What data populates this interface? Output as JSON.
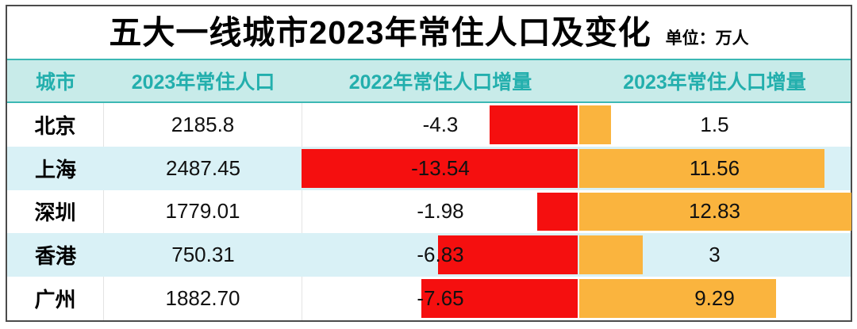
{
  "title": {
    "text": "五大一线城市2023年常住人口及变化",
    "unit_label": "单位：万人"
  },
  "colors": {
    "red": "#F50F0F",
    "orange": "#FAB43E",
    "headerBg": "#C8EBE9",
    "headerText": "#23AFAD",
    "tealBorder": "#3CB8B4",
    "altRow": "#D9F1F6",
    "frameBorder": "#4B4B4B"
  },
  "table": {
    "columns": [
      "城市",
      "2023年常住人口",
      "2022年常住人口增量",
      "2023年常住人口增量"
    ],
    "bar_scale": {
      "max_abs_2022": 13.54,
      "max_2023": 12.83
    },
    "rows": [
      {
        "city": "北京",
        "population": "2185.8",
        "delta2022": "-4.3",
        "delta2022_value": -4.3,
        "delta2023": "1.5",
        "delta2023_value": 1.5
      },
      {
        "city": "上海",
        "population": "2487.45",
        "delta2022": "-13.54",
        "delta2022_value": -13.54,
        "delta2023": "11.56",
        "delta2023_value": 11.56
      },
      {
        "city": "深圳",
        "population": "1779.01",
        "delta2022": "-1.98",
        "delta2022_value": -1.98,
        "delta2023": "12.83",
        "delta2023_value": 12.83
      },
      {
        "city": "香港",
        "population": "750.31",
        "delta2022": "-6.83",
        "delta2022_value": -6.83,
        "delta2023": "3",
        "delta2023_value": 3
      },
      {
        "city": "广州",
        "population": "1882.70",
        "delta2022": "-7.65",
        "delta2022_value": -7.65,
        "delta2023": "9.29",
        "delta2023_value": 9.29
      }
    ]
  },
  "chart_data": {
    "type": "table",
    "title": "五大一线城市2023年常住人口及变化",
    "unit": "万人",
    "categories": [
      "北京",
      "上海",
      "深圳",
      "香港",
      "广州"
    ],
    "series": [
      {
        "name": "2023年常住人口",
        "values": [
          2185.8,
          2487.45,
          1779.01,
          750.31,
          1882.7
        ],
        "display": "text"
      },
      {
        "name": "2022年常住人口增量",
        "values": [
          -4.3,
          -13.54,
          -1.98,
          -6.83,
          -7.65
        ],
        "display": "bar",
        "bar_color": "#F50F0F",
        "bar_anchor": "right",
        "axis_max_abs": 13.54
      },
      {
        "name": "2023年常住人口增量",
        "values": [
          1.5,
          11.56,
          12.83,
          3,
          9.29
        ],
        "display": "bar",
        "bar_color": "#FAB43E",
        "bar_anchor": "left",
        "axis_max_abs": 12.83
      }
    ],
    "layout": {
      "row_striping": true,
      "value_labels": "centered-in-column",
      "legend": "none",
      "grid": "off"
    }
  }
}
